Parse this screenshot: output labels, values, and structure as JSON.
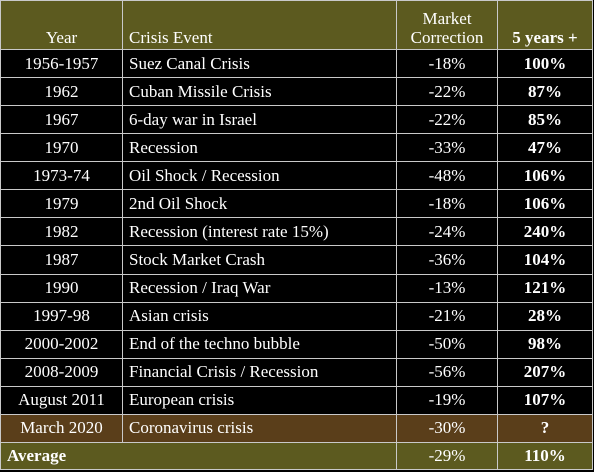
{
  "table": {
    "headers": {
      "year": "Year",
      "event": "Crisis Event",
      "correction_line1": "Market",
      "correction_line2": "Correction",
      "five_years": "5 years +"
    },
    "rows": [
      {
        "year": "1956-1957",
        "event": "Suez Canal Crisis",
        "correction": "-18%",
        "five_years": "100%"
      },
      {
        "year": "1962",
        "event": "Cuban Missile Crisis",
        "correction": "-22%",
        "five_years": "87%"
      },
      {
        "year": "1967",
        "event": "6-day war in Israel",
        "correction": "-22%",
        "five_years": "85%"
      },
      {
        "year": "1970",
        "event": "Recession",
        "correction": "-33%",
        "five_years": "47%"
      },
      {
        "year": "1973-74",
        "event": "Oil Shock / Recession",
        "correction": "-48%",
        "five_years": "106%"
      },
      {
        "year": "1979",
        "event": "2nd Oil Shock",
        "correction": "-18%",
        "five_years": "106%"
      },
      {
        "year": "1982",
        "event": "Recession (interest rate 15%)",
        "correction": "-24%",
        "five_years": "240%"
      },
      {
        "year": "1987",
        "event": "Stock Market Crash",
        "correction": "-36%",
        "five_years": "104%"
      },
      {
        "year": "1990",
        "event": "Recession / Iraq War",
        "correction": "-13%",
        "five_years": "121%"
      },
      {
        "year": "1997-98",
        "event": "Asian crisis",
        "correction": "-21%",
        "five_years": "28%"
      },
      {
        "year": "2000-2002",
        "event": "End of the techno bubble",
        "correction": "-50%",
        "five_years": "98%"
      },
      {
        "year": "2008-2009",
        "event": "Financial Crisis / Recession",
        "correction": "-56%",
        "five_years": "207%"
      },
      {
        "year": "August 2011",
        "event": "European crisis",
        "correction": "-19%",
        "five_years": "107%"
      },
      {
        "year": "March 2020",
        "event": "Coronavirus crisis",
        "correction": "-30%",
        "five_years": "?"
      }
    ],
    "footer": {
      "label": "Average",
      "correction": "-29%",
      "five_years": "110%"
    }
  },
  "colors": {
    "header_bg": "#5c5a1f",
    "row_bg": "#000000",
    "highlight_row_bg": "#5a3e1a",
    "text": "#ffffff",
    "border": "#c9c9c9"
  }
}
